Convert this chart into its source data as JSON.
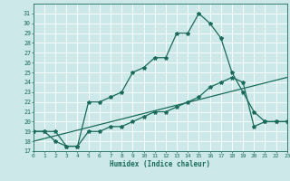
{
  "xlabel": "Humidex (Indice chaleur)",
  "x_ticks": [
    0,
    1,
    2,
    3,
    4,
    5,
    6,
    7,
    8,
    9,
    10,
    11,
    12,
    13,
    14,
    15,
    16,
    17,
    18,
    19,
    20,
    21,
    22,
    23
  ],
  "ylim": [
    17,
    32
  ],
  "xlim": [
    0,
    23
  ],
  "y_ticks": [
    17,
    18,
    19,
    20,
    21,
    22,
    23,
    24,
    25,
    26,
    27,
    28,
    29,
    30,
    31
  ],
  "background_color": "#cce8e8",
  "grid_color": "#ffffff",
  "line_color": "#1a6b5a",
  "line1_x": [
    0,
    1,
    2,
    3,
    4,
    5,
    6,
    7,
    8,
    9,
    10,
    11,
    12,
    13,
    14,
    15,
    16,
    17,
    18,
    19,
    20,
    21,
    22,
    23
  ],
  "line1_y": [
    19,
    19,
    19,
    17.5,
    17.5,
    22,
    22,
    22.5,
    23,
    25,
    25.5,
    26.5,
    26.5,
    29,
    29,
    31,
    30,
    28.5,
    25,
    23,
    21,
    20,
    20,
    20
  ],
  "line2_x": [
    0,
    1,
    2,
    3,
    4,
    5,
    6,
    7,
    8,
    9,
    10,
    11,
    12,
    13,
    14,
    15,
    16,
    17,
    18,
    19,
    20,
    21,
    22,
    23
  ],
  "line2_y": [
    19,
    19,
    18,
    17.5,
    17.5,
    19,
    19,
    19.5,
    19.5,
    20,
    20.5,
    21,
    21,
    21.5,
    22,
    22.5,
    23.5,
    24,
    24.5,
    24,
    19.5,
    20,
    20,
    20
  ],
  "line3_x": [
    0,
    23
  ],
  "line3_y": [
    18.0,
    24.5
  ]
}
